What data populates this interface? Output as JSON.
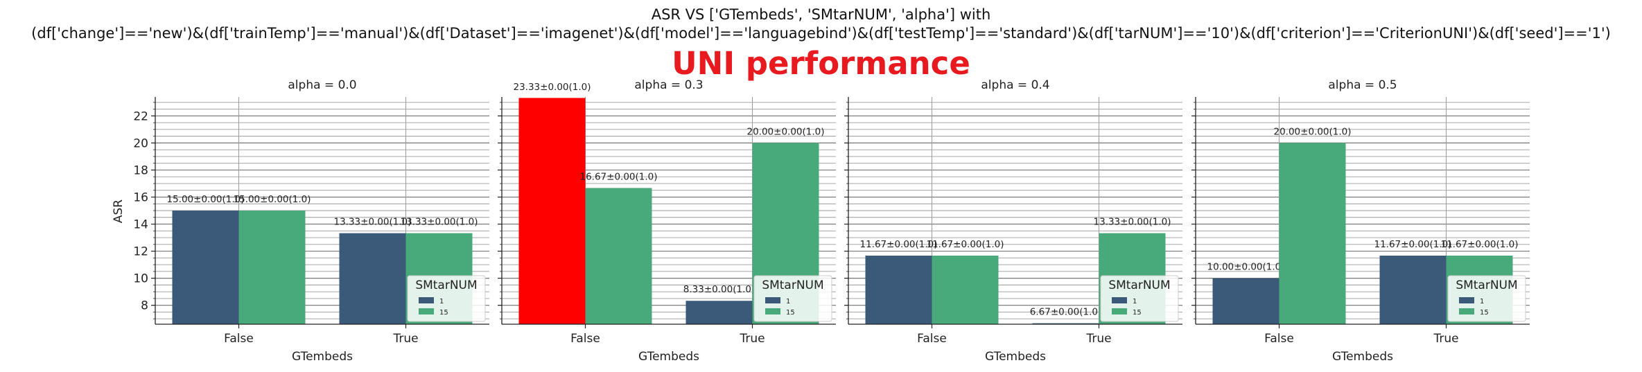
{
  "title": {
    "line1": "ASR VS ['GTembeds', 'SMtarNUM', 'alpha'] with",
    "line2": "(df['change']=='new')&(df['trainTemp']=='manual')&(df['Dataset']=='imagenet')&(df['model']=='languagebind')&(df['testTemp']=='standard')&(df['tarNUM']=='10')&(df['criterion']=='CriterionUNI')&(df['seed']=='1')",
    "subtitle": "UNI performance"
  },
  "colors": {
    "series_1": "#3b5a7a",
    "series_15": "#48a97a",
    "highlight": "#ff0000",
    "subtitle": "#e8191f"
  },
  "chart_data": {
    "type": "bar",
    "ylabel": "ASR",
    "xlabel": "GTembeds",
    "ylim": [
      6.6,
      23.4
    ],
    "yticks": [
      8,
      10,
      12,
      14,
      16,
      18,
      20,
      22
    ],
    "categories": [
      "False",
      "True"
    ],
    "legend": {
      "title": "SMtarNUM",
      "entries": [
        "1",
        "15"
      ],
      "placement": "lower-right"
    },
    "grid": true,
    "panels": [
      {
        "title": "alpha = 0.0",
        "series": [
          {
            "name": "1",
            "values": [
              15.0,
              13.33
            ],
            "labels": [
              "15.00±0.00(1.0)",
              "13.33±0.00(1.0)"
            ]
          },
          {
            "name": "15",
            "values": [
              15.0,
              13.33
            ],
            "labels": [
              "15.00±0.00(1.0)",
              "13.33±0.00(1.0)"
            ]
          }
        ]
      },
      {
        "title": "alpha = 0.3",
        "highlight": {
          "series": 0,
          "category": 0
        },
        "series": [
          {
            "name": "1",
            "values": [
              23.33,
              8.33
            ],
            "labels": [
              "23.33±0.00(1.0)",
              "8.33±0.00(1.0)"
            ]
          },
          {
            "name": "15",
            "values": [
              16.67,
              20.0
            ],
            "labels": [
              "16.67±0.00(1.0)",
              "20.00±0.00(1.0)"
            ]
          }
        ]
      },
      {
        "title": "alpha = 0.4",
        "series": [
          {
            "name": "1",
            "values": [
              11.67,
              6.67
            ],
            "labels": [
              "11.67±0.00(1.0)",
              "6.67±0.00(1.0)"
            ]
          },
          {
            "name": "15",
            "values": [
              11.67,
              13.33
            ],
            "labels": [
              "11.67±0.00(1.0)",
              "13.33±0.00(1.0)"
            ]
          }
        ]
      },
      {
        "title": "alpha = 0.5",
        "series": [
          {
            "name": "1",
            "values": [
              10.0,
              11.67
            ],
            "labels": [
              "10.00±0.00(1.0)",
              "11.67±0.00(1.0)"
            ]
          },
          {
            "name": "15",
            "values": [
              20.0,
              11.67
            ],
            "labels": [
              "20.00±0.00(1.0)",
              "11.67±0.00(1.0)"
            ]
          }
        ]
      }
    ]
  }
}
